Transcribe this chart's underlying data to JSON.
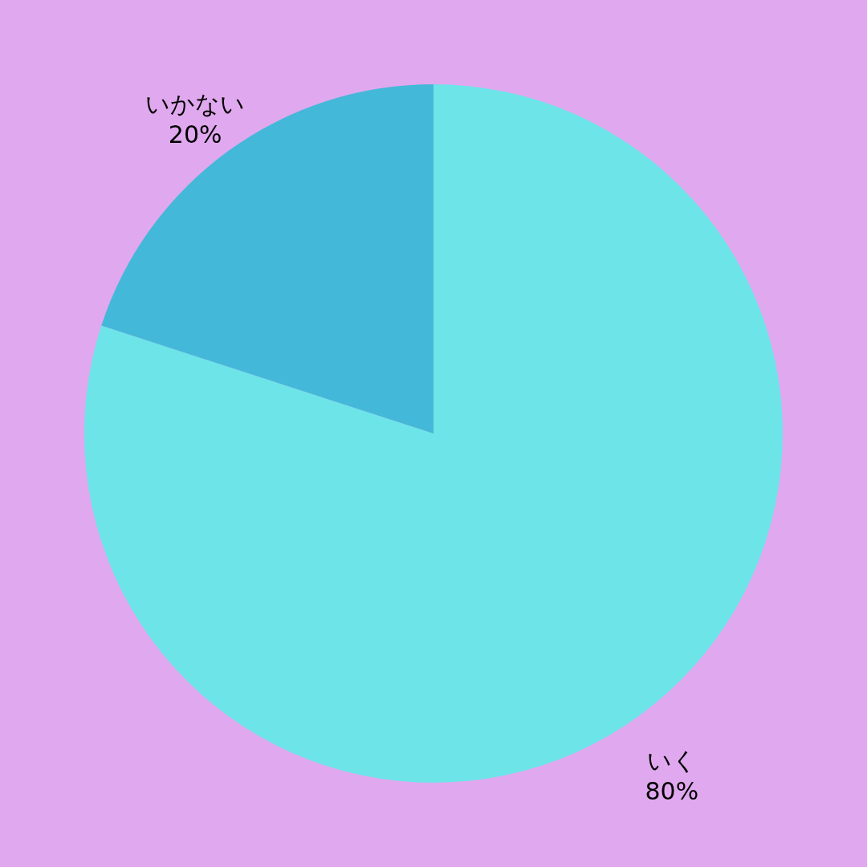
{
  "chart_data": {
    "type": "pie",
    "categories": [
      "いく",
      "いかない"
    ],
    "values": [
      80,
      20
    ],
    "colors": [
      "#6ce4e8",
      "#44b8d8"
    ],
    "value_labels": [
      "80%",
      "20%"
    ]
  }
}
